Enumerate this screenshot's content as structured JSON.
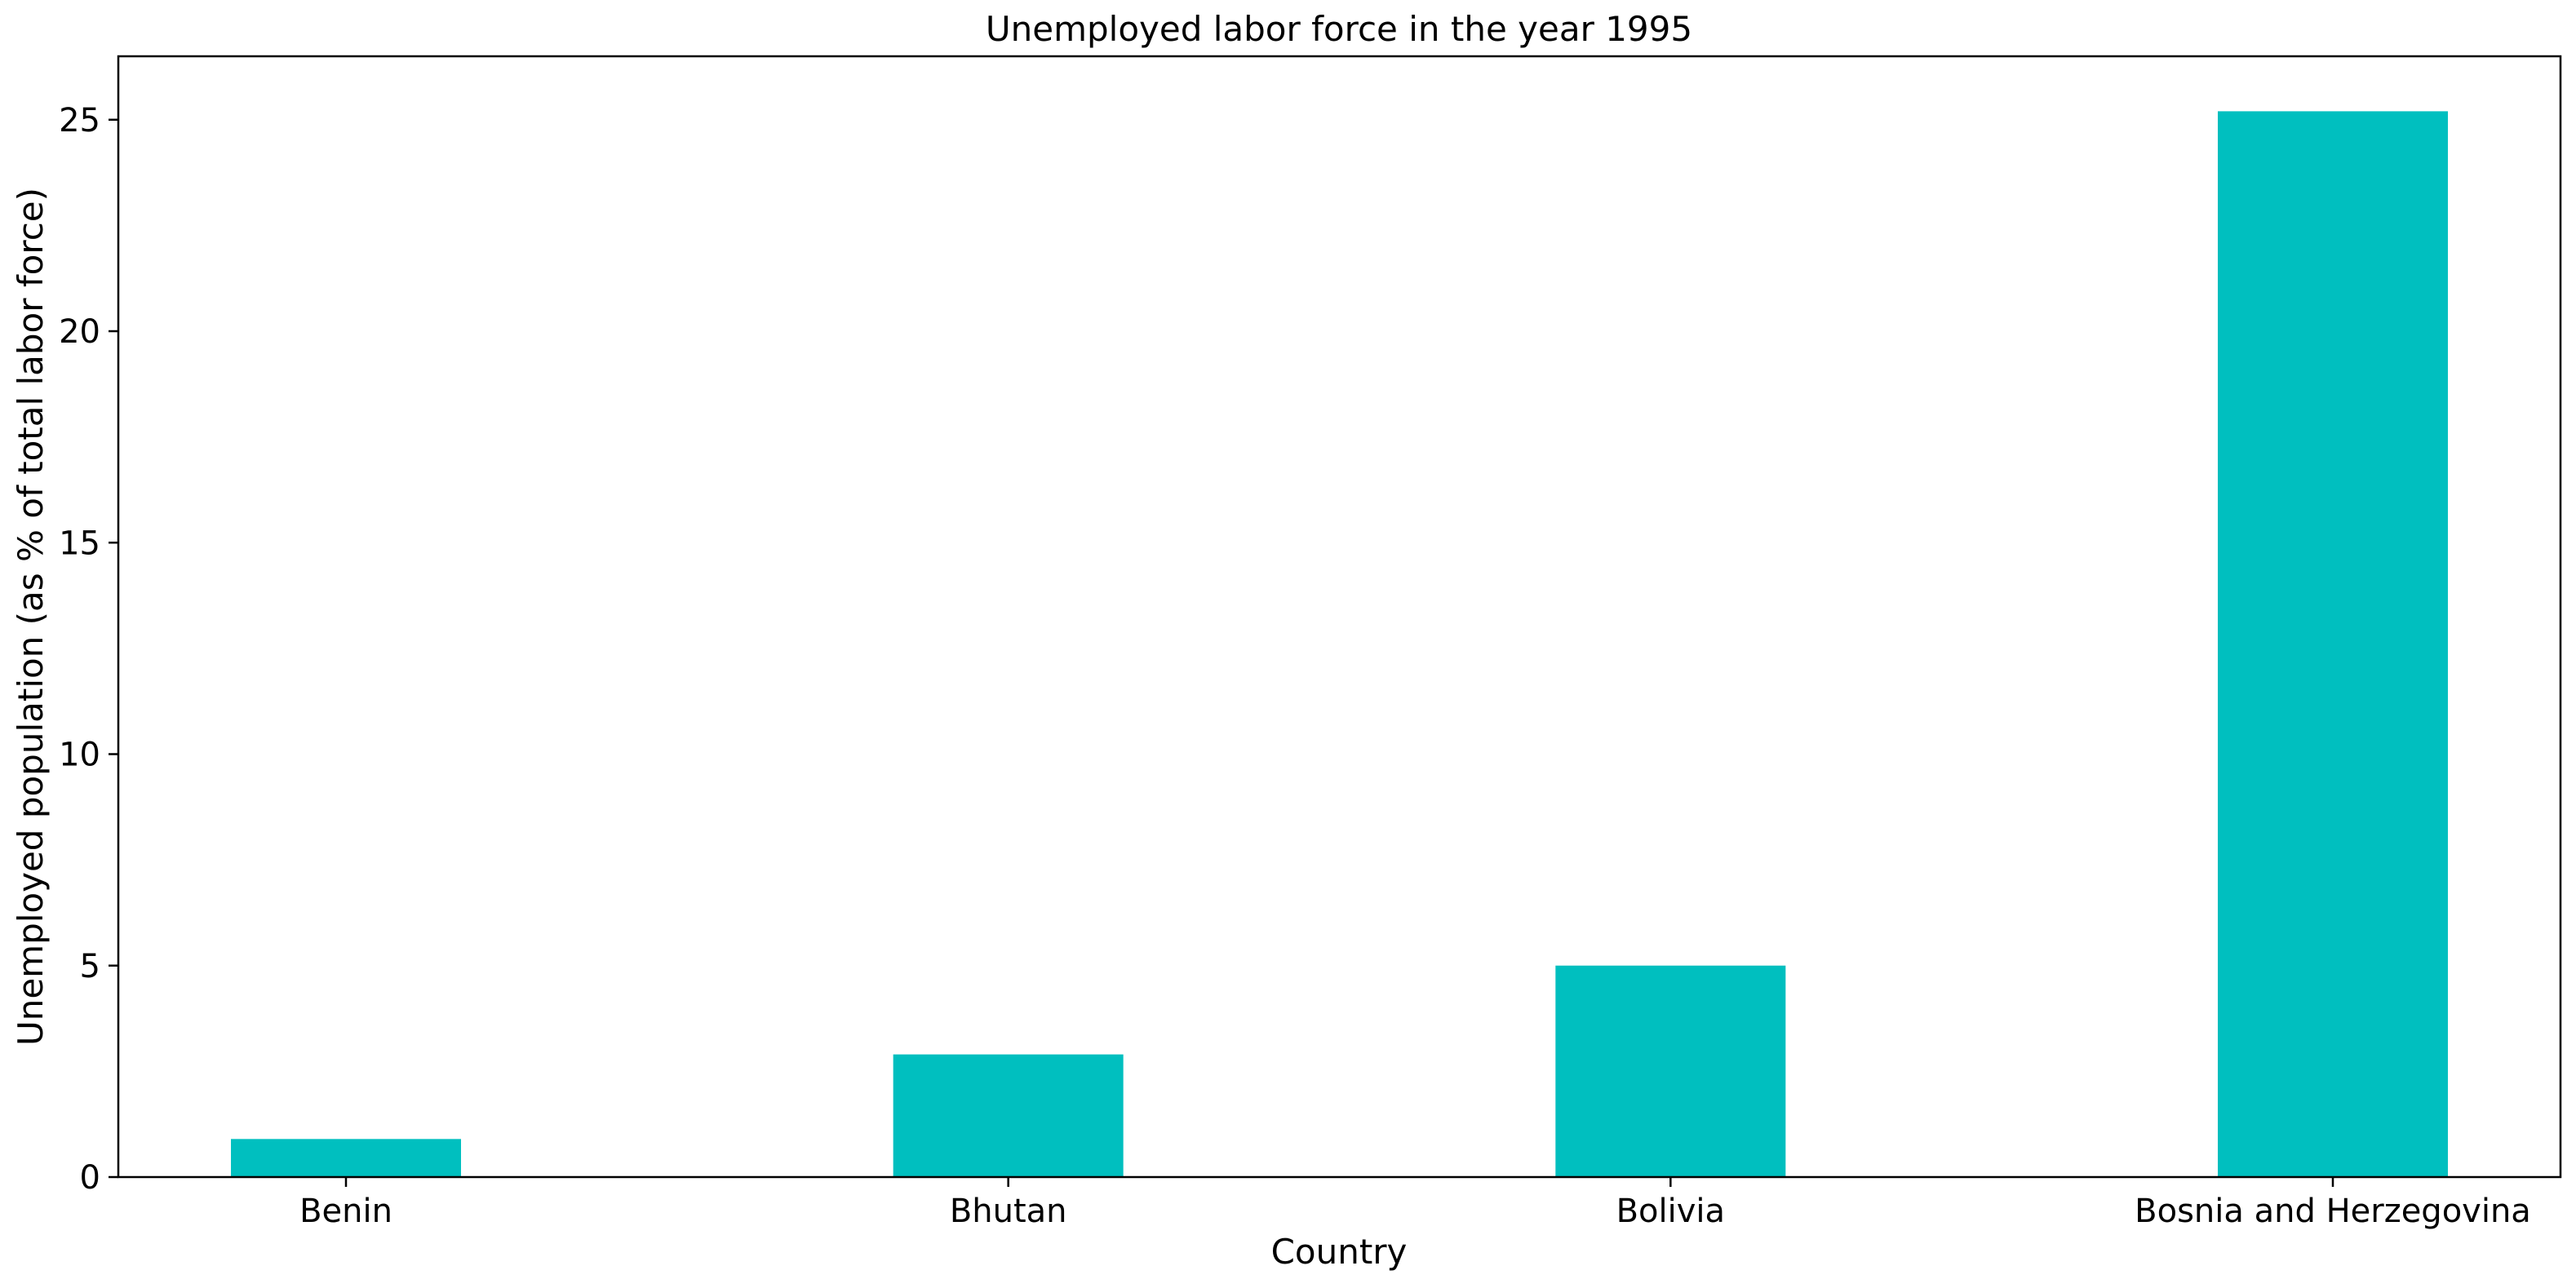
{
  "chart_data": {
    "type": "bar",
    "title": "Unemployed labor force in the year 1995",
    "xlabel": "Country",
    "ylabel": "Unemployed population (as % of total labor force)",
    "categories": [
      "Benin",
      "Bhutan",
      "Bolivia",
      "Bosnia and Herzegovina"
    ],
    "values": [
      0.9,
      2.9,
      5.0,
      25.2
    ],
    "ylim": [
      0,
      26.5
    ],
    "yticks": [
      0,
      5,
      10,
      15,
      20,
      25
    ],
    "bar_color": "#00bfbf",
    "grid": false,
    "legend": "none"
  }
}
